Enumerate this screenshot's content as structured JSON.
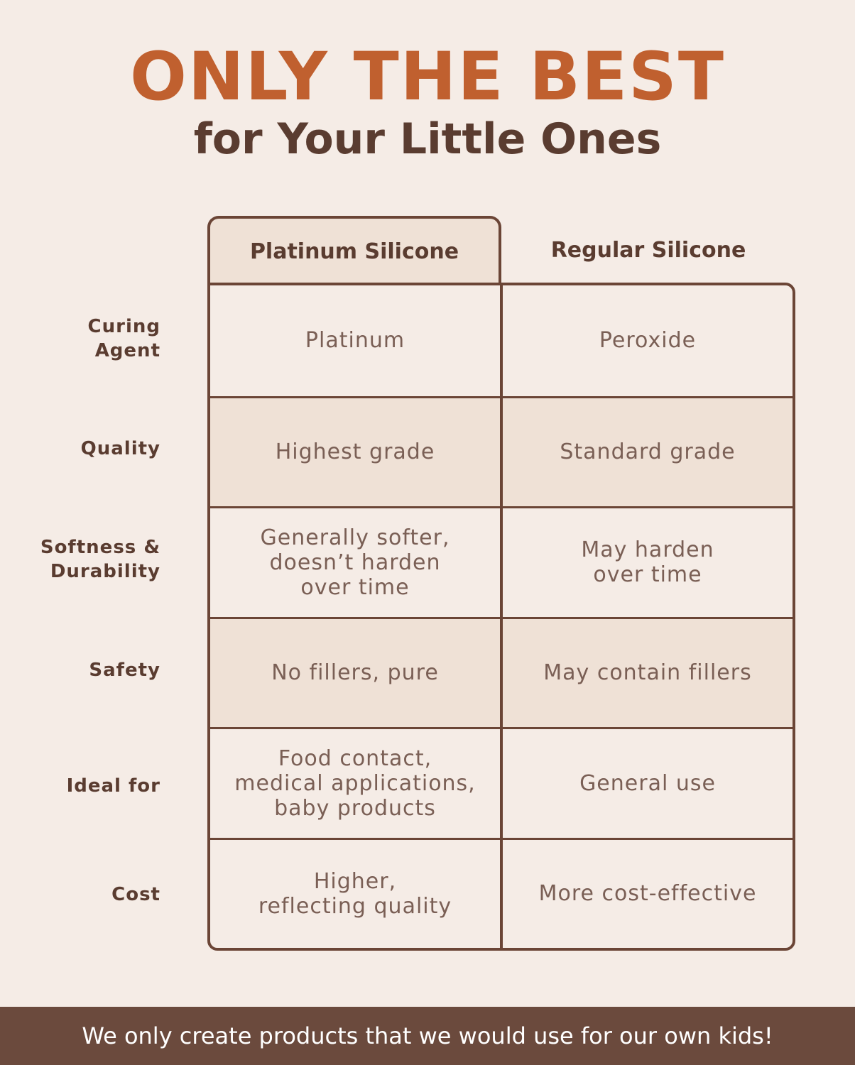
{
  "header": {
    "title": "ONLY THE BEST",
    "subtitle": "for Your Little Ones"
  },
  "table": {
    "columns": [
      "Platinum Silicone",
      "Regular Silicone"
    ],
    "rows": [
      {
        "label": "Curing\nAgent",
        "platinum": "Platinum",
        "regular": "Peroxide"
      },
      {
        "label": "Quality",
        "platinum": "Highest grade",
        "regular": "Standard grade"
      },
      {
        "label": "Softness &\nDurability",
        "platinum": "Generally softer,\ndoesn’t harden\nover time",
        "regular": "May harden\nover time"
      },
      {
        "label": "Safety",
        "platinum": "No fillers, pure",
        "regular": "May contain fillers"
      },
      {
        "label": "Ideal for",
        "platinum": "Food contact,\nmedical applications,\nbaby products",
        "regular": "General use"
      },
      {
        "label": "Cost",
        "platinum": "Higher,\nreflecting quality",
        "regular": "More cost-effective"
      }
    ]
  },
  "footer": {
    "text": "We only create products that we would use for our own kids!"
  },
  "colors": {
    "accent": "#c0602f",
    "border": "#6b4536",
    "shade": "#efe1d6",
    "background": "#f5ece6",
    "footer": "#6b4a3d"
  }
}
